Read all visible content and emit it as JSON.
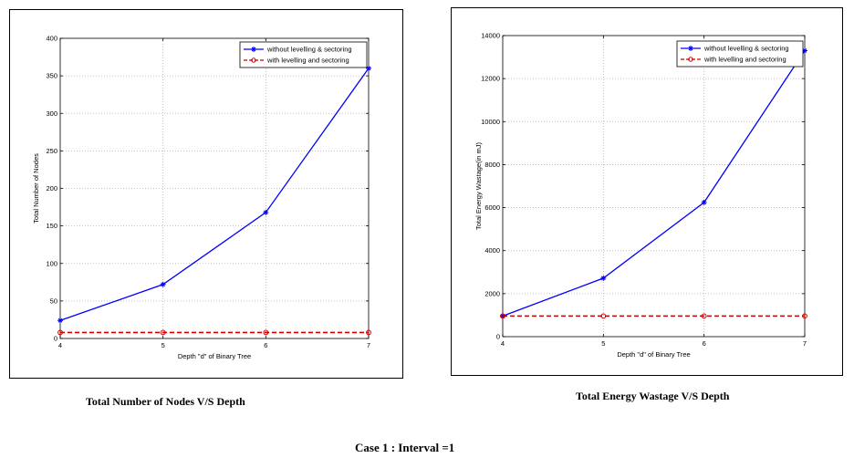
{
  "captions": {
    "left": "Total Number of Nodes V/S Depth",
    "right": "Total Energy Wastage V/S Depth",
    "case": "Case 1 : Interval =1"
  },
  "colors": {
    "series1": "#0000ff",
    "series2": "#cc0000",
    "grid": "#b0b0b0"
  },
  "chart_data": [
    {
      "type": "line",
      "title": "",
      "xlabel": "Depth \"d\" of Binary Tree",
      "ylabel": "Total Number of Nodes",
      "x": [
        4,
        5,
        6,
        7
      ],
      "xlim": [
        4,
        7
      ],
      "ylim": [
        0,
        400
      ],
      "xticks": [
        "4",
        "5",
        "6",
        "7"
      ],
      "yticks": [
        "0",
        "50",
        "100",
        "150",
        "200",
        "250",
        "300",
        "350",
        "400"
      ],
      "grid": true,
      "legend_position": "top-right",
      "series": [
        {
          "name": "without levelling & sectoring",
          "values": [
            24,
            72,
            168,
            360
          ],
          "marker": "star",
          "style": "solid"
        },
        {
          "name": "with levelling and sectoring",
          "values": [
            8,
            8,
            8,
            8
          ],
          "marker": "circle",
          "style": "dashed"
        }
      ]
    },
    {
      "type": "line",
      "title": "",
      "xlabel": "Depth \"d\" of Binary Tree",
      "ylabel": "Total Energy Wastage(in mJ)",
      "x": [
        4,
        5,
        6,
        7
      ],
      "xlim": [
        4,
        7
      ],
      "ylim": [
        0,
        14000
      ],
      "xticks": [
        "4",
        "5",
        "6",
        "7"
      ],
      "yticks": [
        "0",
        "2000",
        "4000",
        "6000",
        "8000",
        "10000",
        "12000",
        "14000"
      ],
      "grid": true,
      "legend_position": "top-right",
      "series": [
        {
          "name": "without levelling & sectoring",
          "values": [
            960,
            2720,
            6240,
            13300
          ],
          "marker": "star",
          "style": "solid"
        },
        {
          "name": "with levelling and sectoring",
          "values": [
            960,
            960,
            960,
            960
          ],
          "marker": "circle",
          "style": "dashed"
        }
      ]
    }
  ]
}
